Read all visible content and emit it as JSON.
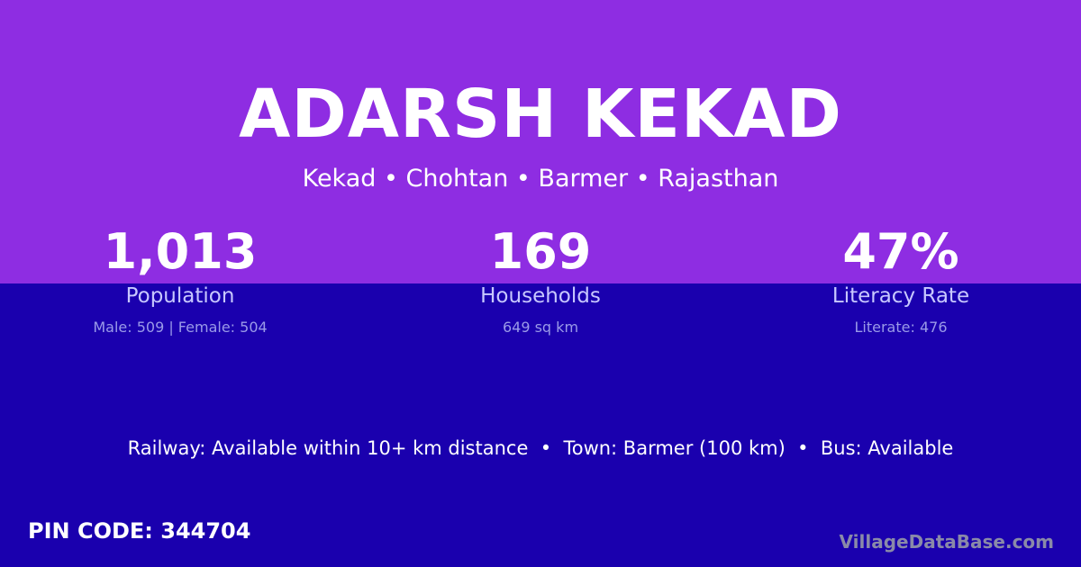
{
  "title": "ADARSH KEKAD",
  "subtitle": "Kekad • Chohtan • Barmer • Rajasthan",
  "stats": [
    {
      "value": "1,013",
      "label": "Population",
      "detail": "Male: 509 | Female: 504"
    },
    {
      "value": "169",
      "label": "Households",
      "detail": "649 sq km"
    },
    {
      "value": "47%",
      "label": "Literacy Rate",
      "detail": "Literate: 476"
    }
  ],
  "info": "Railway: Available within 10+ km distance  •  Town: Barmer (100 km)  •  Bus: Available",
  "pin": "PIN CODE: 344704",
  "brand": "VillageDataBase.com",
  "colors": {
    "top": "#8e2de2",
    "bottom": "#1a00ae"
  }
}
